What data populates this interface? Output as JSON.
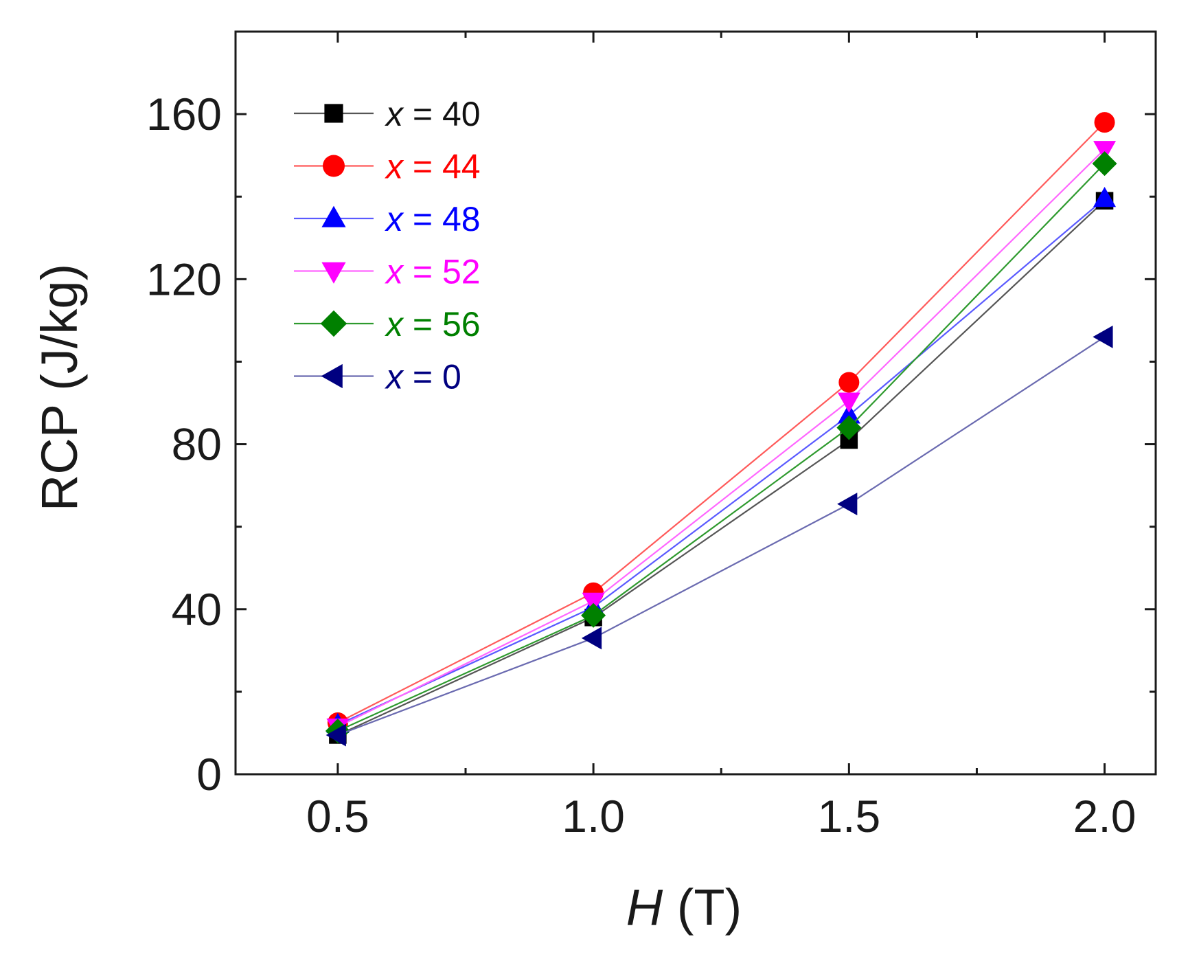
{
  "chart_data": {
    "type": "line",
    "title": "",
    "xlabel": {
      "var": "H",
      "unit": " (T)"
    },
    "ylabel": "RCP (J/kg)",
    "xlim": [
      0.3,
      2.1
    ],
    "ylim": [
      0,
      180
    ],
    "x_ticks": [
      {
        "value": 0.5,
        "label": "0.5"
      },
      {
        "value": 1.0,
        "label": "1.0"
      },
      {
        "value": 1.5,
        "label": "1.5"
      },
      {
        "value": 2.0,
        "label": "2.0"
      }
    ],
    "x_minor_ticks": [
      0.75,
      1.25,
      1.75
    ],
    "y_ticks": [
      {
        "value": 0,
        "label": "0"
      },
      {
        "value": 40,
        "label": "40"
      },
      {
        "value": 80,
        "label": "80"
      },
      {
        "value": 120,
        "label": "120"
      },
      {
        "value": 160,
        "label": "160"
      }
    ],
    "y_minor_ticks": [
      20,
      60,
      100,
      140
    ],
    "x": [
      0.5,
      1.0,
      1.5,
      2.0
    ],
    "legend_position": "top-left",
    "series": [
      {
        "name": "x = 40",
        "var": "x",
        "rest": " = 40",
        "color": "#000000",
        "line_color": "#555555",
        "label_color": "#111111",
        "marker": "square",
        "values": [
          9.5,
          38,
          81,
          139
        ]
      },
      {
        "name": "x = 44",
        "var": "x",
        "rest": " = 44",
        "color": "#ff0000",
        "line_color": "#ff5a5a",
        "label_color": "#ff0000",
        "marker": "circle",
        "values": [
          12.5,
          44,
          95,
          158
        ]
      },
      {
        "name": "x = 48",
        "var": "x",
        "rest": " = 48",
        "color": "#0000ff",
        "line_color": "#5a5aff",
        "label_color": "#0000ff",
        "marker": "triangle-up",
        "values": [
          12,
          40.5,
          87,
          139.5
        ]
      },
      {
        "name": "x = 52",
        "var": "x",
        "rest": " = 52",
        "color": "#ff00ff",
        "line_color": "#ff66ff",
        "label_color": "#ff00ff",
        "marker": "triangle-down",
        "values": [
          11.5,
          42,
          90.5,
          151.5
        ]
      },
      {
        "name": "x = 56",
        "var": "x",
        "rest": " = 56",
        "color": "#008000",
        "line_color": "#2e9a2e",
        "label_color": "#008000",
        "marker": "diamond",
        "values": [
          10.5,
          38.5,
          84,
          148
        ]
      },
      {
        "name": "x = 0",
        "var": "x",
        "rest": " = 0",
        "color": "#000080",
        "line_color": "#6a6ab0",
        "label_color": "#000080",
        "marker": "triangle-left",
        "values": [
          9.5,
          33,
          65.5,
          106
        ]
      }
    ]
  }
}
